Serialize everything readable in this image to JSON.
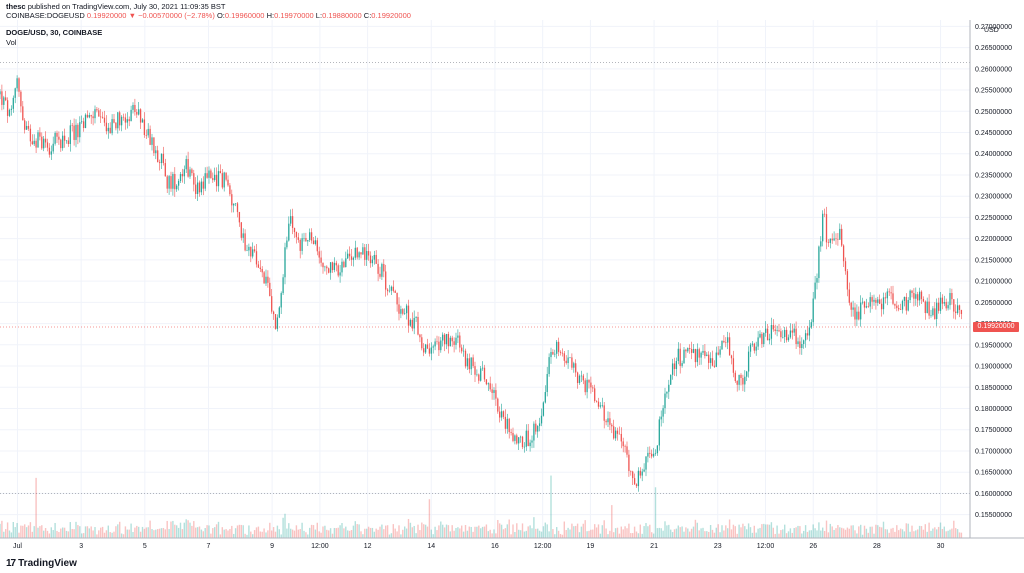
{
  "header": {
    "user": "thesc",
    "published_text": "published on TradingView.com, July 30, 2021 11:09:35 BST",
    "symbol_full": "COINBASE:DOGEUSD",
    "last_price": "0.19920000",
    "arrow": "▼",
    "change": "−0.00570000 (−2.78%)",
    "o_label": "O:",
    "o_value": "0.19960000",
    "h_label": "H:",
    "h_value": "0.19970000",
    "l_label": "L:",
    "l_value": "0.19880000",
    "c_label": "C:",
    "c_value": "0.19920000"
  },
  "legend": {
    "title": "DOGE/USD, 30, COINBASE",
    "vol_label": "Vol"
  },
  "footer": {
    "logo_glyph": "17",
    "brand": "TradingView"
  },
  "chart_data": {
    "type": "candlestick",
    "symbol": "DOGE/USD",
    "interval": "30",
    "exchange": "COINBASE",
    "currency_label": "USD",
    "ylim": [
      0.1495,
      0.2715
    ],
    "y_ticks": [
      "0.27000000",
      "0.26500000",
      "0.26000000",
      "0.25500000",
      "0.25000000",
      "0.24500000",
      "0.24000000",
      "0.23500000",
      "0.23000000",
      "0.22500000",
      "0.22000000",
      "0.21500000",
      "0.21000000",
      "0.20500000",
      "0.20000000",
      "0.19500000",
      "0.19000000",
      "0.18500000",
      "0.18000000",
      "0.17500000",
      "0.17000000",
      "0.16500000",
      "0.16000000",
      "0.15500000"
    ],
    "x_ticks": [
      "Jul",
      "3",
      "5",
      "7",
      "9",
      "12:00",
      "12",
      "14",
      "16",
      "12:00",
      "19",
      "21",
      "23",
      "12:00",
      "26",
      "28",
      "30"
    ],
    "x_tick_days": [
      1,
      3,
      5,
      7,
      9,
      10.5,
      12,
      14,
      16,
      17.5,
      19,
      21,
      23,
      24.5,
      26,
      28,
      30
    ],
    "xlim_days": [
      0.45,
      30.8
    ],
    "current_price": 0.1992,
    "current_price_label": "0.19920000",
    "dotted_line_prices": [
      0.2615,
      0.1992,
      0.16
    ],
    "path": [
      [
        0.45,
        0.254
      ],
      [
        0.8,
        0.248
      ],
      [
        1.0,
        0.259
      ],
      [
        1.2,
        0.245
      ],
      [
        1.5,
        0.244
      ],
      [
        2.0,
        0.242
      ],
      [
        2.5,
        0.244
      ],
      [
        3.0,
        0.246
      ],
      [
        3.4,
        0.25
      ],
      [
        3.9,
        0.246
      ],
      [
        4.3,
        0.249
      ],
      [
        4.7,
        0.25
      ],
      [
        5.1,
        0.244
      ],
      [
        5.5,
        0.239
      ],
      [
        5.7,
        0.233
      ],
      [
        6.0,
        0.234
      ],
      [
        6.3,
        0.238
      ],
      [
        6.6,
        0.232
      ],
      [
        7.0,
        0.235
      ],
      [
        7.5,
        0.234
      ],
      [
        7.8,
        0.228
      ],
      [
        8.1,
        0.22
      ],
      [
        8.4,
        0.216
      ],
      [
        8.8,
        0.21
      ],
      [
        9.1,
        0.199
      ],
      [
        9.3,
        0.206
      ],
      [
        9.5,
        0.225
      ],
      [
        9.8,
        0.219
      ],
      [
        10.2,
        0.22
      ],
      [
        10.6,
        0.214
      ],
      [
        11.0,
        0.212
      ],
      [
        11.4,
        0.215
      ],
      [
        11.8,
        0.217
      ],
      [
        12.2,
        0.216
      ],
      [
        12.7,
        0.208
      ],
      [
        13.1,
        0.203
      ],
      [
        13.5,
        0.2
      ],
      [
        13.9,
        0.192
      ],
      [
        14.3,
        0.196
      ],
      [
        14.7,
        0.197
      ],
      [
        15.1,
        0.191
      ],
      [
        15.5,
        0.188
      ],
      [
        15.9,
        0.186
      ],
      [
        16.2,
        0.178
      ],
      [
        16.5,
        0.175
      ],
      [
        16.8,
        0.172
      ],
      [
        17.2,
        0.174
      ],
      [
        17.5,
        0.18
      ],
      [
        17.8,
        0.195
      ],
      [
        18.2,
        0.192
      ],
      [
        18.6,
        0.188
      ],
      [
        19.0,
        0.184
      ],
      [
        19.4,
        0.179
      ],
      [
        19.8,
        0.174
      ],
      [
        20.1,
        0.17
      ],
      [
        20.4,
        0.163
      ],
      [
        20.7,
        0.166
      ],
      [
        21.0,
        0.17
      ],
      [
        21.3,
        0.18
      ],
      [
        21.7,
        0.192
      ],
      [
        22.1,
        0.192
      ],
      [
        22.5,
        0.193
      ],
      [
        22.9,
        0.192
      ],
      [
        23.3,
        0.195
      ],
      [
        23.7,
        0.185
      ],
      [
        24.0,
        0.193
      ],
      [
        24.4,
        0.196
      ],
      [
        24.8,
        0.199
      ],
      [
        25.2,
        0.198
      ],
      [
        25.6,
        0.196
      ],
      [
        25.9,
        0.198
      ],
      [
        26.1,
        0.21
      ],
      [
        26.3,
        0.226
      ],
      [
        26.5,
        0.218
      ],
      [
        26.8,
        0.222
      ],
      [
        27.0,
        0.212
      ],
      [
        27.3,
        0.2
      ],
      [
        27.6,
        0.206
      ],
      [
        28.0,
        0.204
      ],
      [
        28.4,
        0.207
      ],
      [
        28.8,
        0.205
      ],
      [
        29.2,
        0.206
      ],
      [
        29.6,
        0.204
      ],
      [
        29.9,
        0.203
      ],
      [
        30.2,
        0.206
      ],
      [
        30.5,
        0.204
      ],
      [
        30.7,
        0.1992
      ]
    ]
  }
}
